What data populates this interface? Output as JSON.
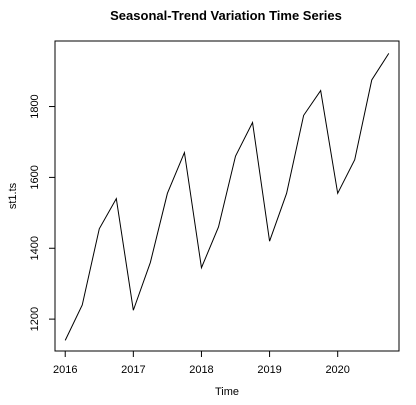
{
  "chart_data": {
    "type": "line",
    "title": "Seasonal-Trend Variation Time Series",
    "xlabel": "Time",
    "ylabel": "st1.ts",
    "xlim": [
      2015.85,
      2020.9
    ],
    "ylim": [
      1110,
      1985
    ],
    "x_ticks": [
      2016,
      2017,
      2018,
      2019,
      2020
    ],
    "y_ticks": [
      1200,
      1400,
      1600,
      1800
    ],
    "x_tick_labels": [
      "2016",
      "2017",
      "2018",
      "2019",
      "2020"
    ],
    "y_tick_labels": [
      "1200",
      "1400",
      "1600",
      "1800"
    ],
    "grid": false,
    "series": [
      {
        "x": [
          2016.0,
          2016.25,
          2016.5,
          2016.75,
          2017.0,
          2017.25,
          2017.5,
          2017.75,
          2018.0,
          2018.25,
          2018.5,
          2018.75,
          2019.0,
          2019.25,
          2019.5,
          2019.75,
          2020.0,
          2020.25,
          2020.5,
          2020.75
        ],
        "values": [
          1140,
          1240,
          1455,
          1540,
          1225,
          1360,
          1555,
          1670,
          1345,
          1460,
          1660,
          1755,
          1420,
          1555,
          1775,
          1845,
          1555,
          1650,
          1875,
          1950
        ]
      }
    ],
    "colors": {
      "line": "#000000",
      "frame": "#000000",
      "background": "#ffffff"
    }
  }
}
